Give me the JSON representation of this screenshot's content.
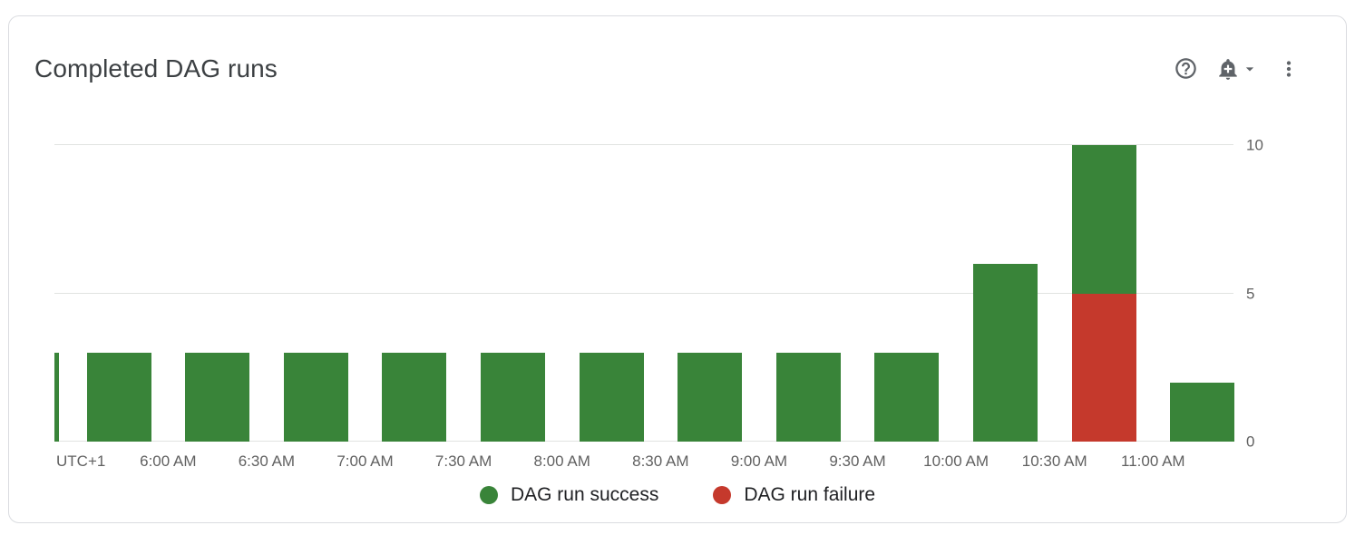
{
  "card": {
    "title": "Completed DAG runs"
  },
  "toolbar": {
    "icons": [
      "help-icon",
      "add-alert-icon",
      "caret-down-icon",
      "kebab-menu-icon"
    ]
  },
  "chart_data": {
    "type": "bar",
    "stacked": true,
    "title": "Completed DAG runs",
    "timezone_label": "UTC+1",
    "x_ticks": [
      "6:00 AM",
      "6:30 AM",
      "7:00 AM",
      "7:30 AM",
      "8:00 AM",
      "8:30 AM",
      "9:00 AM",
      "9:30 AM",
      "10:00 AM",
      "10:30 AM",
      "11:00 AM"
    ],
    "x_interval_minutes": 30,
    "y_ticks": [
      0,
      5,
      10
    ],
    "ylim": [
      0,
      10
    ],
    "grid": "horizontal",
    "legend_position": "bottom",
    "series": [
      {
        "name": "DAG run success",
        "color": "#398439",
        "values": [
          3,
          3,
          3,
          3,
          3,
          3,
          3,
          3,
          3,
          3,
          6,
          5,
          2
        ]
      },
      {
        "name": "DAG run failure",
        "color": "#c5392c",
        "values": [
          0,
          0,
          0,
          0,
          0,
          0,
          0,
          0,
          0,
          0,
          0,
          5,
          0
        ]
      }
    ],
    "stack_bottom_to_top": [
      "DAG run failure",
      "DAG run success"
    ],
    "first_bar_clipped_at_left_edge": true,
    "legend": [
      {
        "label": "DAG run success",
        "color": "#398439"
      },
      {
        "label": "DAG run failure",
        "color": "#c5392c"
      }
    ]
  }
}
